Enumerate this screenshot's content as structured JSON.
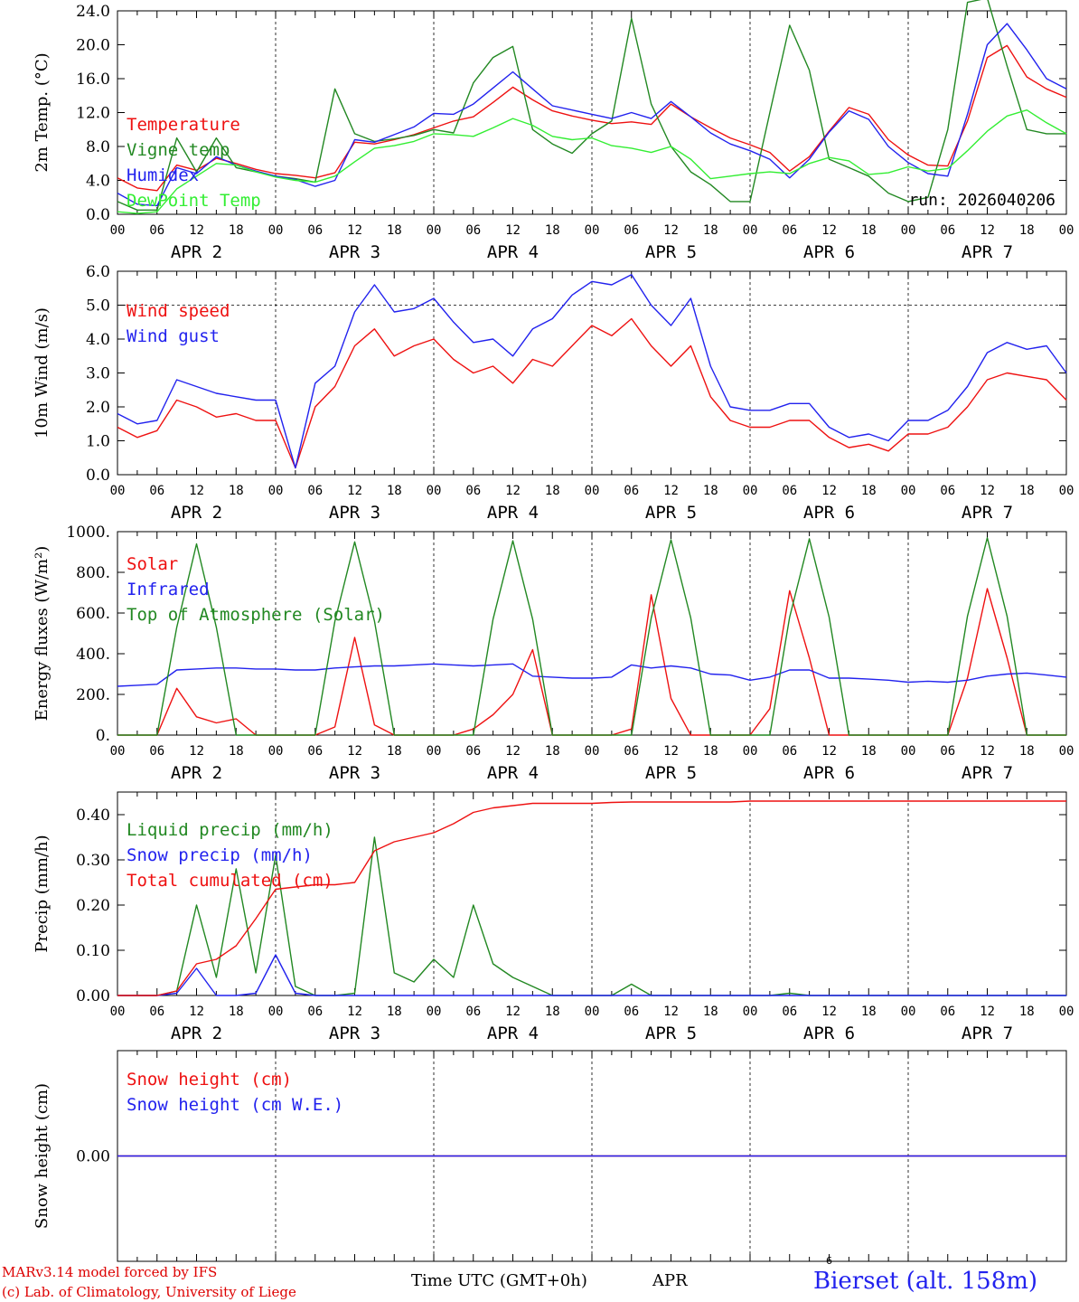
{
  "footer": {
    "credit_line1": "MARv3.14 model forced by IFS",
    "credit_line2": "(c) Lab. of Climatology, University of Liege",
    "axis_label": "Time UTC (GMT+0h)",
    "month": "APR",
    "superscript": "6",
    "station": "Bierset (alt. 158m)"
  },
  "time_axis": {
    "hour_labels": [
      "00",
      "06",
      "12",
      "18",
      "00",
      "06",
      "12",
      "18",
      "00",
      "06",
      "12",
      "18",
      "00",
      "06",
      "12",
      "18",
      "00",
      "06",
      "12",
      "18",
      "00",
      "06",
      "12",
      "18",
      "00"
    ],
    "day_labels": [
      "APR  2",
      "APR  3",
      "APR  4",
      "APR  5",
      "APR  6",
      "APR  7"
    ]
  },
  "chart_data": [
    {
      "type": "line",
      "title": "2m Temperature",
      "ylabel": "2m Temp. (°C)",
      "ylim": [
        0,
        24
      ],
      "yticks": [
        "0.0",
        "4.0",
        "8.0",
        "12.0",
        "16.0",
        "20.0",
        "24.0"
      ],
      "ytick_values": [
        0,
        4,
        8,
        12,
        16,
        20,
        24
      ],
      "annotation": "run: 2026040206",
      "x_hours": [
        0,
        3,
        6,
        9,
        12,
        15,
        18,
        21,
        24,
        27,
        30,
        33,
        36,
        39,
        42,
        45,
        48,
        51,
        54,
        57,
        60,
        63,
        66,
        69,
        72,
        75,
        78,
        81,
        84,
        87,
        90,
        93,
        96,
        99,
        102,
        105,
        108,
        111,
        114,
        117,
        120,
        123,
        126,
        129,
        132,
        135,
        138,
        141,
        144
      ],
      "series": [
        {
          "name": "Temperature",
          "color": "#ee1111",
          "values": [
            4.3,
            3.1,
            2.8,
            5.8,
            5.2,
            6.6,
            6.0,
            5.3,
            4.8,
            4.6,
            4.3,
            4.9,
            8.5,
            8.3,
            8.8,
            9.4,
            10.2,
            11.0,
            11.5,
            13.2,
            15.0,
            13.5,
            12.2,
            11.6,
            11.1,
            10.7,
            10.9,
            10.6,
            13.0,
            11.5,
            10.2,
            9.0,
            8.2,
            7.3,
            5.1,
            6.8,
            9.8,
            12.6,
            11.8,
            8.8,
            7.0,
            5.8,
            5.7,
            11.0,
            18.5,
            19.9,
            16.2,
            14.8,
            13.8
          ]
        },
        {
          "name": "Vigne temp",
          "color": "#228822",
          "values": [
            1.5,
            0.5,
            0.5,
            9.0,
            5.0,
            9.0,
            5.5,
            5.0,
            4.5,
            4.2,
            3.8,
            14.8,
            9.5,
            8.6,
            8.9,
            9.3,
            10.0,
            9.6,
            15.5,
            18.5,
            19.8,
            10.0,
            8.3,
            7.2,
            9.5,
            11.0,
            23.1,
            13.0,
            8.0,
            5.0,
            3.5,
            1.5,
            1.5,
            12.0,
            22.3,
            17.0,
            6.5,
            5.5,
            4.5,
            2.5,
            1.5,
            2.0,
            10.0,
            25.0,
            25.5,
            17.5,
            10.0,
            9.5,
            9.5
          ]
        },
        {
          "name": "Humidex",
          "color": "#2222ee",
          "values": [
            2.5,
            1.2,
            1.0,
            5.5,
            4.8,
            6.8,
            5.8,
            5.1,
            4.5,
            4.1,
            3.3,
            4.0,
            8.8,
            8.5,
            9.4,
            10.3,
            11.9,
            11.8,
            13.0,
            14.9,
            16.8,
            14.8,
            12.8,
            12.3,
            11.8,
            11.3,
            12.0,
            11.3,
            13.3,
            11.5,
            9.6,
            8.3,
            7.5,
            6.5,
            4.3,
            6.5,
            9.7,
            12.2,
            11.2,
            8.0,
            6.1,
            4.8,
            4.5,
            11.8,
            20.0,
            22.5,
            19.4,
            16.0,
            14.8
          ]
        },
        {
          "name": "DewPoint Temp",
          "color": "#33ee33",
          "values": [
            0.3,
            0.1,
            0.3,
            3.0,
            4.5,
            6.0,
            5.8,
            5.0,
            4.4,
            4.0,
            3.8,
            4.5,
            6.2,
            7.8,
            8.1,
            8.6,
            9.5,
            9.4,
            9.2,
            10.2,
            11.3,
            10.5,
            9.2,
            8.8,
            9.0,
            8.1,
            7.8,
            7.3,
            8.0,
            6.5,
            4.2,
            4.5,
            4.8,
            5.0,
            4.8,
            6.0,
            6.7,
            6.3,
            4.7,
            4.9,
            5.6,
            5.1,
            5.4,
            7.5,
            9.8,
            11.6,
            12.3,
            10.8,
            9.5
          ]
        }
      ]
    },
    {
      "type": "line",
      "title": "10m Wind",
      "ylabel": "10m Wind (m/s)",
      "ylim": [
        0,
        6
      ],
      "yticks": [
        "0.0",
        "1.0",
        "2.0",
        "3.0",
        "4.0",
        "5.0",
        "6.0"
      ],
      "ytick_values": [
        0,
        1,
        2,
        3,
        4,
        5,
        6
      ],
      "reference_line": 5.0,
      "x_hours": [
        0,
        3,
        6,
        9,
        12,
        15,
        18,
        21,
        24,
        27,
        30,
        33,
        36,
        39,
        42,
        45,
        48,
        51,
        54,
        57,
        60,
        63,
        66,
        69,
        72,
        75,
        78,
        81,
        84,
        87,
        90,
        93,
        96,
        99,
        102,
        105,
        108,
        111,
        114,
        117,
        120,
        123,
        126,
        129,
        132,
        135,
        138,
        141,
        144
      ],
      "series": [
        {
          "name": "Wind speed",
          "color": "#ee1111",
          "values": [
            1.4,
            1.1,
            1.3,
            2.2,
            2.0,
            1.7,
            1.8,
            1.6,
            1.6,
            0.2,
            2.0,
            2.6,
            3.8,
            4.3,
            3.5,
            3.8,
            4.0,
            3.4,
            3.0,
            3.2,
            2.7,
            3.4,
            3.2,
            3.8,
            4.4,
            4.1,
            4.6,
            3.8,
            3.2,
            3.8,
            2.3,
            1.6,
            1.4,
            1.4,
            1.6,
            1.6,
            1.1,
            0.8,
            0.9,
            0.7,
            1.2,
            1.2,
            1.4,
            2.0,
            2.8,
            3.0,
            2.9,
            2.8,
            2.2
          ]
        },
        {
          "name": "Wind gust",
          "color": "#2222ee",
          "values": [
            1.8,
            1.5,
            1.6,
            2.8,
            2.6,
            2.4,
            2.3,
            2.2,
            2.2,
            0.2,
            2.7,
            3.2,
            4.8,
            5.6,
            4.8,
            4.9,
            5.2,
            4.5,
            3.9,
            4.0,
            3.5,
            4.3,
            4.6,
            5.3,
            5.7,
            5.6,
            5.9,
            5.0,
            4.4,
            5.2,
            3.2,
            2.0,
            1.9,
            1.9,
            2.1,
            2.1,
            1.4,
            1.1,
            1.2,
            1.0,
            1.6,
            1.6,
            1.9,
            2.6,
            3.6,
            3.9,
            3.7,
            3.8,
            3.0
          ]
        }
      ]
    },
    {
      "type": "line",
      "title": "Energy fluxes",
      "ylabel": "Energy fluxes (W/m²)",
      "ylim": [
        0,
        1000
      ],
      "yticks": [
        "0.",
        "200.",
        "400.",
        "600.",
        "800.",
        "1000."
      ],
      "ytick_values": [
        0,
        200,
        400,
        600,
        800,
        1000
      ],
      "x_hours": [
        0,
        3,
        6,
        9,
        12,
        15,
        18,
        21,
        24,
        27,
        30,
        33,
        36,
        39,
        42,
        45,
        48,
        51,
        54,
        57,
        60,
        63,
        66,
        69,
        72,
        75,
        78,
        81,
        84,
        87,
        90,
        93,
        96,
        99,
        102,
        105,
        108,
        111,
        114,
        117,
        120,
        123,
        126,
        129,
        132,
        135,
        138,
        141,
        144
      ],
      "series": [
        {
          "name": "Solar",
          "color": "#ee1111",
          "values": [
            0,
            0,
            0,
            230,
            90,
            60,
            80,
            0,
            0,
            0,
            0,
            40,
            480,
            50,
            0,
            0,
            0,
            0,
            30,
            100,
            200,
            420,
            0,
            0,
            0,
            0,
            30,
            690,
            180,
            0,
            0,
            0,
            0,
            130,
            710,
            380,
            0,
            0,
            0,
            0,
            0,
            0,
            0,
            280,
            720,
            380,
            0,
            0,
            0
          ]
        },
        {
          "name": "Infrared",
          "color": "#2222ee",
          "values": [
            240,
            245,
            250,
            320,
            325,
            330,
            330,
            325,
            325,
            320,
            320,
            330,
            335,
            340,
            340,
            345,
            350,
            345,
            340,
            345,
            350,
            290,
            285,
            280,
            280,
            285,
            345,
            330,
            340,
            330,
            300,
            295,
            270,
            285,
            320,
            320,
            280,
            280,
            275,
            270,
            260,
            265,
            260,
            270,
            290,
            300,
            305,
            295,
            285
          ]
        },
        {
          "name": "Top of Atmosphere (Solar)",
          "color": "#228822",
          "values": [
            0,
            0,
            0,
            530,
            940,
            530,
            0,
            0,
            0,
            0,
            0,
            560,
            950,
            560,
            0,
            0,
            0,
            0,
            0,
            570,
            955,
            570,
            0,
            0,
            0,
            0,
            0,
            575,
            960,
            575,
            0,
            0,
            0,
            0,
            580,
            965,
            580,
            0,
            0,
            0,
            0,
            0,
            0,
            585,
            970,
            585,
            0,
            0,
            0
          ]
        }
      ]
    },
    {
      "type": "line",
      "title": "Precip",
      "ylabel": "Precip (mm/h)",
      "ylim": [
        0,
        0.45
      ],
      "yticks": [
        "0.00",
        "0.10",
        "0.20",
        "0.30",
        "0.40"
      ],
      "ytick_values": [
        0,
        0.1,
        0.2,
        0.3,
        0.4
      ],
      "x_hours": [
        0,
        3,
        6,
        9,
        12,
        15,
        18,
        21,
        24,
        27,
        30,
        33,
        36,
        39,
        42,
        45,
        48,
        51,
        54,
        57,
        60,
        63,
        66,
        69,
        72,
        75,
        78,
        81,
        84,
        87,
        90,
        93,
        96,
        99,
        102,
        105,
        108,
        111,
        114,
        117,
        120,
        123,
        126,
        129,
        132,
        135,
        138,
        141,
        144
      ],
      "series": [
        {
          "name": "Liquid precip (mm/h)",
          "color": "#228822",
          "values": [
            0,
            0,
            0,
            0.01,
            0.2,
            0.04,
            0.28,
            0.05,
            0.31,
            0.02,
            0,
            0,
            0.005,
            0.35,
            0.05,
            0.03,
            0.08,
            0.04,
            0.2,
            0.07,
            0.04,
            0.02,
            0,
            0,
            0,
            0,
            0.025,
            0,
            0,
            0,
            0,
            0,
            0,
            0,
            0.005,
            0,
            0,
            0,
            0,
            0,
            0,
            0,
            0,
            0,
            0,
            0,
            0,
            0,
            0
          ]
        },
        {
          "name": "Snow precip (mm/h)",
          "color": "#2222ee",
          "values": [
            0,
            0,
            0,
            0.005,
            0.06,
            0,
            0,
            0.005,
            0.09,
            0.005,
            0,
            0,
            0,
            0,
            0,
            0,
            0,
            0,
            0,
            0,
            0,
            0,
            0,
            0,
            0,
            0,
            0,
            0,
            0,
            0,
            0,
            0,
            0,
            0,
            0,
            0,
            0,
            0,
            0,
            0,
            0,
            0,
            0,
            0,
            0,
            0,
            0,
            0,
            0
          ]
        },
        {
          "name": "Total cumulated (cm)",
          "color": "#ee1111",
          "values": [
            0,
            0,
            0,
            0.01,
            0.07,
            0.08,
            0.11,
            0.17,
            0.235,
            0.24,
            0.245,
            0.245,
            0.25,
            0.32,
            0.34,
            0.35,
            0.36,
            0.38,
            0.405,
            0.415,
            0.42,
            0.425,
            0.425,
            0.425,
            0.425,
            0.427,
            0.428,
            0.428,
            0.428,
            0.428,
            0.428,
            0.428,
            0.43,
            0.43,
            0.43,
            0.43,
            0.43,
            0.43,
            0.43,
            0.43,
            0.43,
            0.43,
            0.43,
            0.43,
            0.43,
            0.43,
            0.43,
            0.43,
            0.43
          ]
        }
      ]
    },
    {
      "type": "line",
      "title": "Snow height",
      "ylabel": "Snow height (cm)",
      "ylim": [
        -0.01,
        0.01
      ],
      "yticks": [
        "0.00"
      ],
      "ytick_values": [
        0
      ],
      "x_hours": [
        0,
        144
      ],
      "series": [
        {
          "name": "Snow height (cm)",
          "color": "#ee1111",
          "values": [
            0,
            0
          ]
        },
        {
          "name": "Snow height (cm W.E.)",
          "color": "#2222ee",
          "values": [
            0,
            0
          ]
        }
      ]
    }
  ]
}
